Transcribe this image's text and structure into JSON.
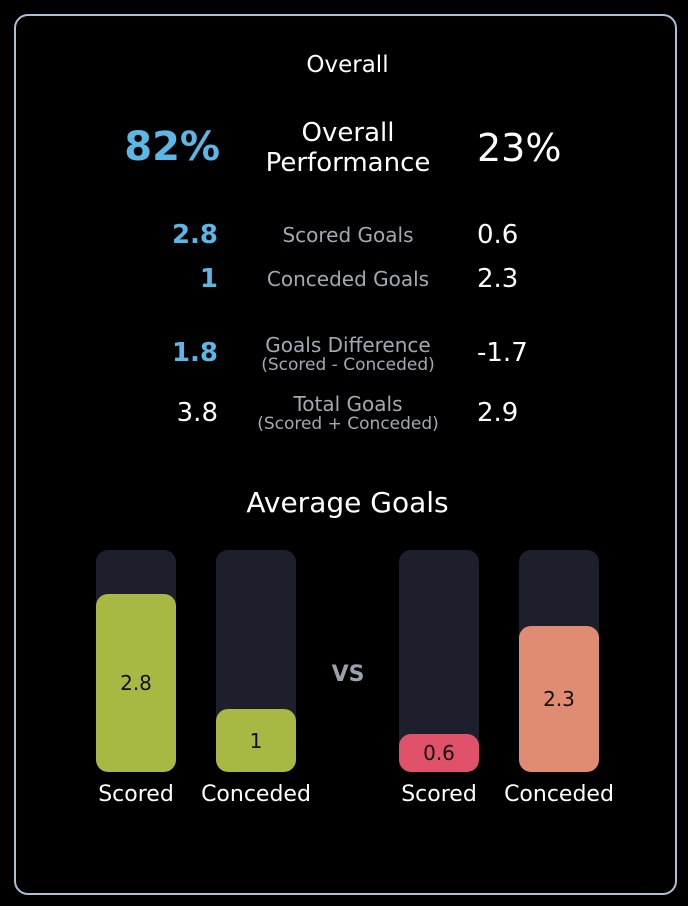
{
  "title": "Overall",
  "overall_performance": {
    "left": "82%",
    "label_line1": "Overall",
    "label_line2": "Performance",
    "right": "23%"
  },
  "stats": [
    {
      "left": "2.8",
      "label": "Scored Goals",
      "sub": "",
      "right": "0.6"
    },
    {
      "left": "1",
      "label": "Conceded Goals",
      "sub": "",
      "right": "2.3"
    },
    {
      "left": "1.8",
      "label": "Goals Difference",
      "sub": "(Scored - Conceded)",
      "right": "-1.7"
    },
    {
      "left": "3.8",
      "label": "Total Goals",
      "sub": "(Scored + Conceded)",
      "right": "2.9"
    }
  ],
  "average_goals": {
    "title": "Average Goals",
    "vs_label": "VS",
    "max_value": 3.5,
    "bars": [
      {
        "label": "Scored",
        "value": 2.8,
        "display": "2.8",
        "color": "#a8b843"
      },
      {
        "label": "Conceded",
        "value": 1,
        "display": "1",
        "color": "#a8b843"
      },
      {
        "label": "Scored",
        "value": 0.6,
        "display": "0.6",
        "color": "#e0516a"
      },
      {
        "label": "Conceded",
        "value": 2.3,
        "display": "2.3",
        "color": "#e08c72"
      }
    ]
  },
  "colors": {
    "accent_blue": "#5ab7e6",
    "border": "#aebfd6",
    "track": "#1d202c"
  }
}
